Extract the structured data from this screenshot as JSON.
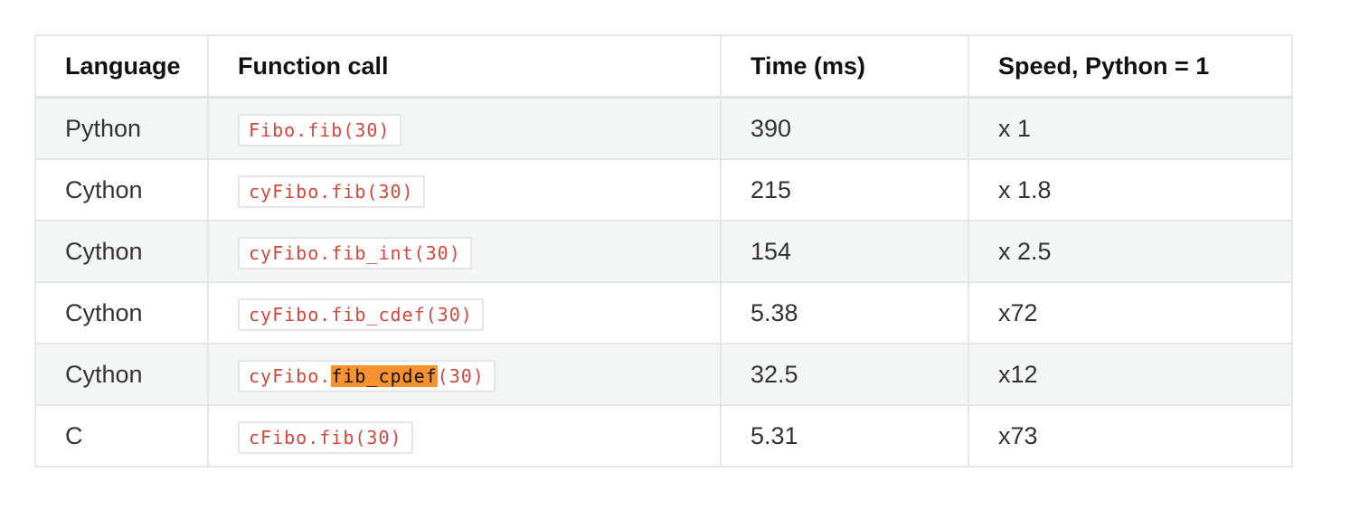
{
  "table": {
    "headers": [
      "Language",
      "Function call",
      "Time (ms)",
      "Speed, Python = 1"
    ],
    "rows": [
      {
        "language": "Python",
        "call_pre": "Fibo.fib(30)",
        "call_hl": "",
        "call_post": "",
        "time": "390",
        "speed": "x 1"
      },
      {
        "language": "Cython",
        "call_pre": "cyFibo.fib(30)",
        "call_hl": "",
        "call_post": "",
        "time": "215",
        "speed": "x 1.8"
      },
      {
        "language": "Cython",
        "call_pre": "cyFibo.fib_int(30)",
        "call_hl": "",
        "call_post": "",
        "time": "154",
        "speed": "x 2.5"
      },
      {
        "language": "Cython",
        "call_pre": "cyFibo.fib_cdef(30)",
        "call_hl": "",
        "call_post": "",
        "time": "5.38",
        "speed": "x72"
      },
      {
        "language": "Cython",
        "call_pre": "cyFibo.",
        "call_hl": "fib_cpdef",
        "call_post": "(30)",
        "time": "32.5",
        "speed": "x12"
      },
      {
        "language": "C",
        "call_pre": "cFibo.fib(30)",
        "call_hl": "",
        "call_post": "",
        "time": "5.31",
        "speed": "x73"
      }
    ]
  },
  "colors": {
    "code_text": "#d8453c",
    "highlight": "#f7932f",
    "stripe": "#f3f6f7",
    "border": "#e4e7e9"
  }
}
